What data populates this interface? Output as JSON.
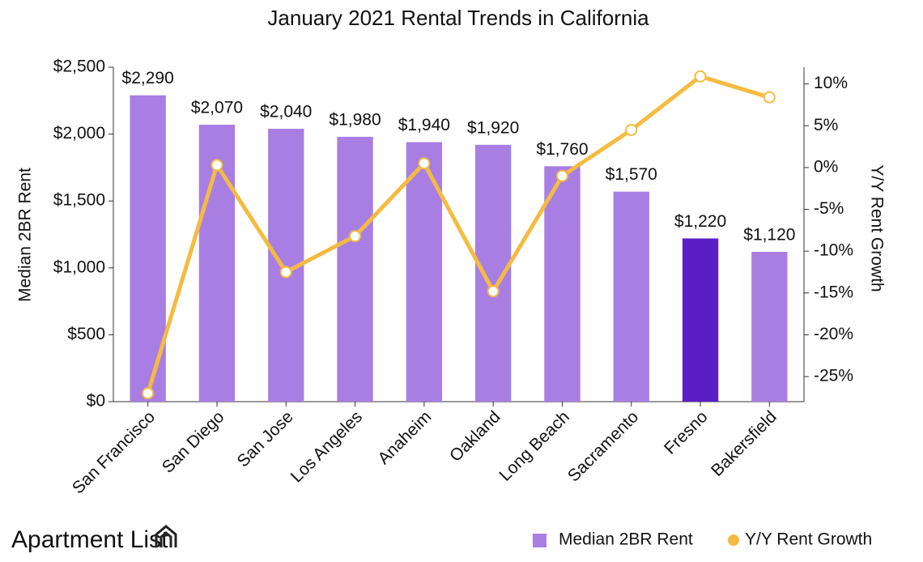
{
  "chart_data": {
    "type": "bar",
    "title": "January 2021 Rental Trends in California",
    "y_label": "Median 2BR Rent",
    "y2_label": "Y/Y Rent Growth",
    "categories": [
      "San Francisco",
      "San Diego",
      "San Jose",
      "Los Angeles",
      "Anaheim",
      "Oakland",
      "Long Beach",
      "Sacramento",
      "Fresno",
      "Bakersfield"
    ],
    "series": [
      {
        "name": "Median 2BR Rent",
        "type": "bar",
        "color": "#a97ee3",
        "colors": [
          "#a97ee3",
          "#a97ee3",
          "#a97ee3",
          "#a97ee3",
          "#a97ee3",
          "#a97ee3",
          "#a97ee3",
          "#a97ee3",
          "#5b1ec6",
          "#a97ee3"
        ],
        "values": [
          2290,
          2070,
          2040,
          1980,
          1940,
          1920,
          1760,
          1570,
          1220,
          1120
        ],
        "value_labels": [
          "$2,290",
          "$2,070",
          "$2,040",
          "$1,980",
          "$1,940",
          "$1,920",
          "$1,760",
          "$1,570",
          "$1,220",
          "$1,120"
        ]
      },
      {
        "name": "Y/Y Rent Growth",
        "type": "line",
        "axis": "y2",
        "color": "#f5bb40",
        "values": [
          -27.0,
          0.3,
          -12.5,
          -8.2,
          0.5,
          -14.8,
          -1.0,
          4.5,
          10.9,
          8.4
        ]
      }
    ],
    "ylim": [
      0,
      2500
    ],
    "yticks": [
      {
        "value": 0,
        "label": "$0"
      },
      {
        "value": 500,
        "label": "$500"
      },
      {
        "value": 1000,
        "label": "$1,000"
      },
      {
        "value": 1500,
        "label": "$1,500"
      },
      {
        "value": 2000,
        "label": "$2,000"
      },
      {
        "value": 2500,
        "label": "$2,500"
      }
    ],
    "y2lim": [
      -28,
      12
    ],
    "y2ticks": [
      {
        "value": -25,
        "label": "-25%"
      },
      {
        "value": -20,
        "label": "-20%"
      },
      {
        "value": -15,
        "label": "-15%"
      },
      {
        "value": -10,
        "label": "-10%"
      },
      {
        "value": -5,
        "label": "-5%"
      },
      {
        "value": 0,
        "label": "0%"
      },
      {
        "value": 5,
        "label": "5%"
      },
      {
        "value": 10,
        "label": "10%"
      }
    ],
    "brand": "Apartment List"
  }
}
